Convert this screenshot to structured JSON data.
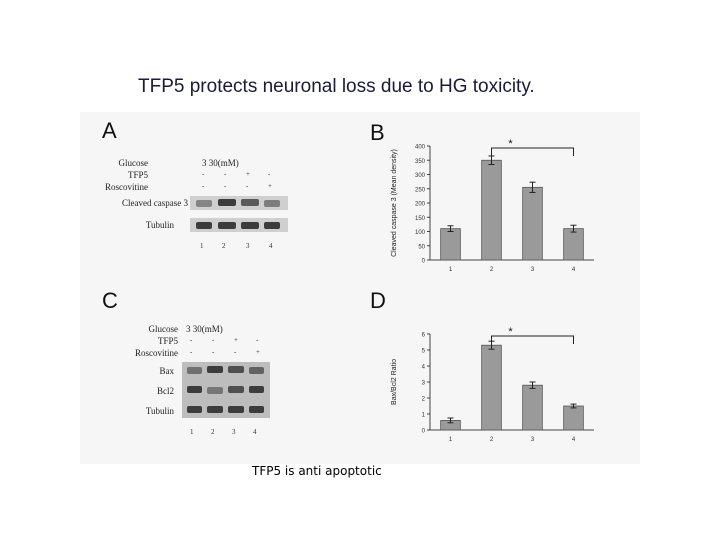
{
  "slide": {
    "title": "TFP5  protects neuronal loss due to HG toxicity.",
    "caption": "TFP5 is anti apoptotic"
  },
  "panels": {
    "a": {
      "letter": "A",
      "glucose_label": "Glucose",
      "glucose_values": "3    30(mM)",
      "row_labels": [
        "TFP5",
        "Roscovitine",
        "Cleaved caspase 3",
        "Tubulin"
      ],
      "treatment_marks": [
        "-",
        "-",
        "+",
        "-",
        "-",
        "-",
        "-",
        "+"
      ],
      "lanes": [
        "1",
        "2",
        "3",
        "4"
      ]
    },
    "c": {
      "letter": "C",
      "glucose_label": "Glucose",
      "glucose_values": "3    30(mM)",
      "row_labels": [
        "TFP5",
        "Roscovitine",
        "Bax",
        "Bcl2",
        "Tubulin"
      ],
      "treatment_marks": [
        "-",
        "-",
        "+",
        "-",
        "-",
        "-",
        "-",
        "+"
      ],
      "lanes": [
        "1",
        "2",
        "3",
        "4"
      ]
    },
    "b": {
      "letter": "B"
    },
    "d": {
      "letter": "D"
    }
  },
  "chart_data": [
    {
      "type": "bar",
      "panel": "B",
      "categories": [
        "1",
        "2",
        "3",
        "4"
      ],
      "values": [
        110,
        350,
        255,
        110
      ],
      "errors": [
        10,
        15,
        18,
        12
      ],
      "ylabel": "Cleaved caspase 3 (Mean density)",
      "ylim": [
        0,
        400
      ],
      "yticks": [
        "0",
        "50",
        "100",
        "150",
        "200",
        "250",
        "300",
        "350",
        "400"
      ],
      "annotation": "*"
    },
    {
      "type": "bar",
      "panel": "D",
      "categories": [
        "1",
        "2",
        "3",
        "4"
      ],
      "values": [
        0.6,
        5.3,
        2.8,
        1.5
      ],
      "errors": [
        0.15,
        0.25,
        0.2,
        0.12
      ],
      "ylabel": "Bax/Bcl2 Ratio",
      "ylim": [
        0,
        6
      ],
      "yticks": [
        "0",
        "1",
        "2",
        "3",
        "4",
        "5",
        "6"
      ],
      "annotation": "*"
    }
  ],
  "colors": {
    "bar": "#9a9a9a",
    "band": "#3c3c3c"
  }
}
